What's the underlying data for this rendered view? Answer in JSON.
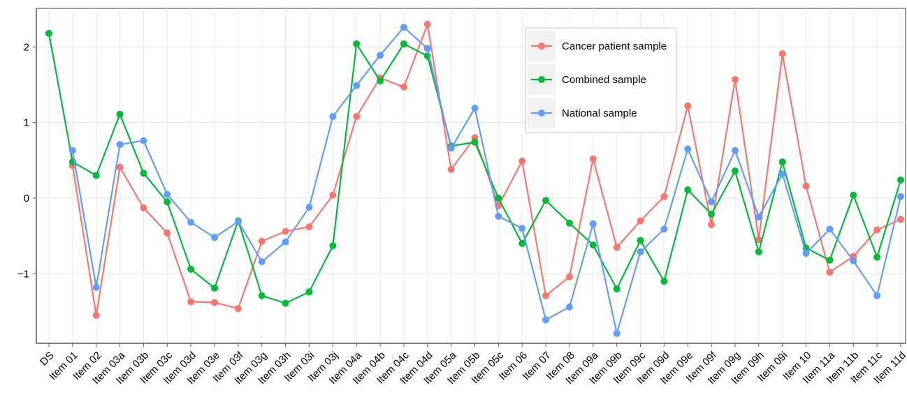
{
  "chart_data": {
    "type": "line",
    "categories": [
      "DS",
      "Item 01",
      "Item 02",
      "Item 03a",
      "Item 03b",
      "Item 03c",
      "Item 03d",
      "Item 03e",
      "Item 03f",
      "Item 03g",
      "Item 03h",
      "Item 03i",
      "Item 03j",
      "Item 04a",
      "Item 04b",
      "Item 04c",
      "Item 04d",
      "Item 05a",
      "Item 05b",
      "Item 05c",
      "Item 06",
      "Item 07",
      "Item 08",
      "Item 09a",
      "Item 09b",
      "Item 09c",
      "Item 09d",
      "Item 09e",
      "Item 09f",
      "Item 09g",
      "Item 09h",
      "Item 09i",
      "Item 10",
      "Item 11a",
      "Item 11b",
      "Item 11c",
      "Item 11d"
    ],
    "series": [
      {
        "name": "Cancer patient sample",
        "color": "#f8766d",
        "values": [
          null,
          0.43,
          -1.55,
          0.41,
          -0.13,
          -0.46,
          -1.37,
          -1.38,
          -1.46,
          -0.57,
          -0.44,
          -0.38,
          0.04,
          1.08,
          1.59,
          1.47,
          2.3,
          0.38,
          0.8,
          -0.1,
          0.49,
          -1.29,
          -1.04,
          0.52,
          -0.65,
          -0.3,
          0.02,
          1.22,
          -0.35,
          1.57,
          -0.55,
          1.91,
          0.16,
          -0.98,
          -0.77,
          -0.42,
          -0.28
        ]
      },
      {
        "name": "Combined sample",
        "color": "#00ba38",
        "values": [
          2.18,
          0.48,
          0.3,
          1.11,
          0.33,
          -0.05,
          -0.94,
          -1.19,
          -0.3,
          -1.29,
          -1.39,
          -1.24,
          -0.63,
          2.04,
          1.55,
          2.04,
          1.88,
          0.69,
          0.74,
          0.0,
          -0.6,
          -0.03,
          -0.33,
          -0.62,
          -1.2,
          -0.56,
          -1.1,
          0.11,
          -0.21,
          0.36,
          -0.71,
          0.48,
          -0.66,
          -0.82,
          0.04,
          -0.78,
          0.24
        ]
      },
      {
        "name": "National sample",
        "color": "#619cff",
        "values": [
          null,
          0.63,
          -1.18,
          0.71,
          0.76,
          0.05,
          -0.32,
          -0.52,
          -0.31,
          -0.84,
          -0.58,
          -0.12,
          1.08,
          1.49,
          1.89,
          2.26,
          1.98,
          0.66,
          1.19,
          -0.24,
          -0.4,
          -1.61,
          -1.44,
          -0.34,
          -1.79,
          -0.71,
          -0.41,
          0.65,
          -0.05,
          0.63,
          -0.25,
          0.32,
          -0.73,
          -0.41,
          -0.83,
          -1.29,
          0.02
        ]
      }
    ],
    "ylim": [
      -1.92,
      2.51
    ],
    "yticks": [
      {
        "value": -1,
        "label": "−1"
      },
      0,
      1,
      2
    ],
    "grid": true,
    "legend_position": "inside-top"
  }
}
